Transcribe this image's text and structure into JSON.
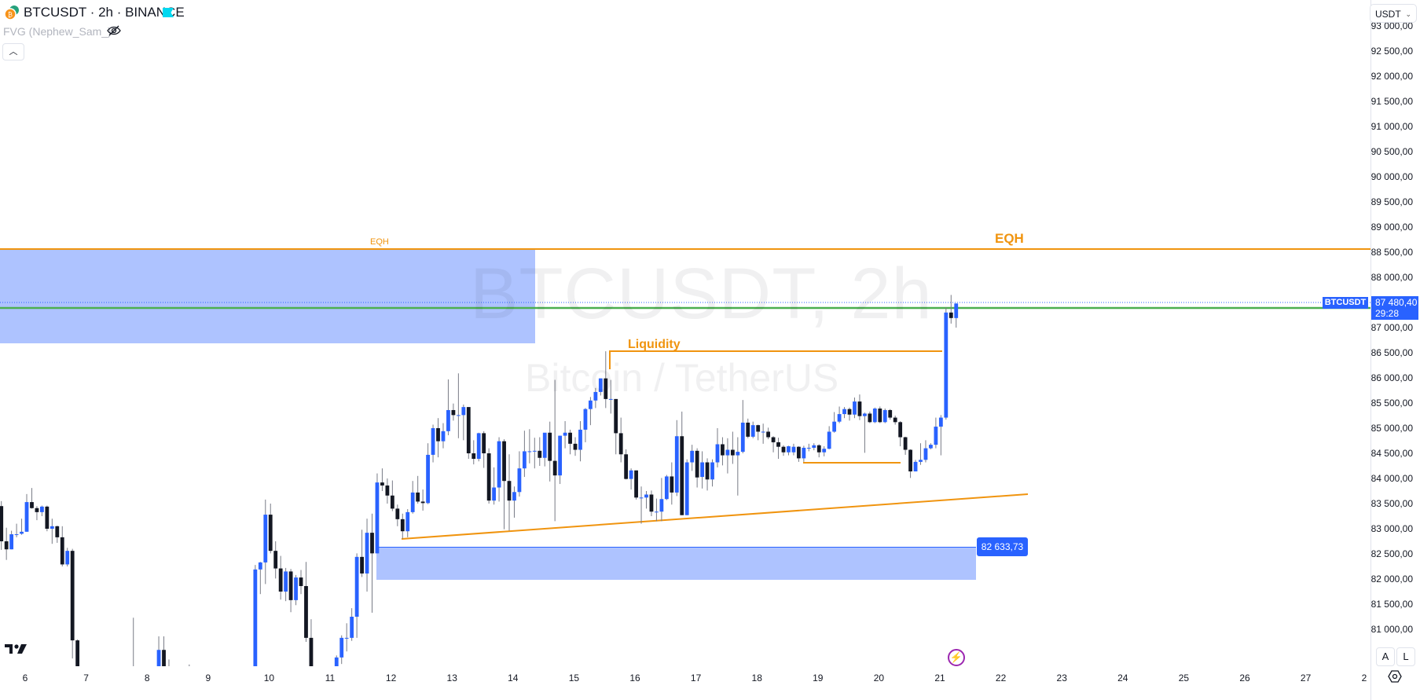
{
  "header": {
    "title": "BTCUSDT · 2h · BINANCE",
    "indicator": "FVG (Nephew_Sam_)",
    "collapse_icon": "chevron-up-icon",
    "visibility_icon": "eye-off-icon"
  },
  "currency_select": {
    "value": "USDT"
  },
  "watermark": {
    "symbol": "BTCUSDT, 2h",
    "description": "Bitcoin / TetherUS"
  },
  "price_axis": {
    "ticks": [
      "93 000,00",
      "92 500,00",
      "92 000,00",
      "91 500,00",
      "91 000,00",
      "90 500,00",
      "90 000,00",
      "89 500,00",
      "89 000,00",
      "88 500,00",
      "88 000,00",
      "87 500,00",
      "87 000,00",
      "86 500,00",
      "86 000,00",
      "85 500,00",
      "85 000,00",
      "84 500,00",
      "84 000,00",
      "83 500,00",
      "83 000,00",
      "82 500,00",
      "82 000,00",
      "81 500,00",
      "81 000,00"
    ],
    "current_symbol": "BTCUSDT",
    "current_price": "87 480,40",
    "countdown": "29:28",
    "auto_label": "A",
    "log_label": "L"
  },
  "time_axis": {
    "ticks": [
      "6",
      "7",
      "8",
      "9",
      "10",
      "11",
      "12",
      "13",
      "14",
      "15",
      "16",
      "17",
      "18",
      "19",
      "20",
      "21",
      "22",
      "23",
      "24",
      "25",
      "26",
      "27",
      "2"
    ]
  },
  "drawings": {
    "eqh_small": "EQH",
    "eqh_large": "EQH",
    "liquidity": "Liquidity",
    "zone_price": "82 633,73"
  },
  "colors": {
    "up": "#2962ff",
    "down": "#131722",
    "wick": "#787b86",
    "drawing": "#f0940f",
    "zone": "#2962ff",
    "current_line": "#4caf50"
  },
  "chart_data": {
    "type": "candlestick",
    "interval": "2h",
    "ylim": [
      80250,
      93300
    ],
    "levels": {
      "eqh": 88560,
      "current_price": 87480.4,
      "green_line": 87390,
      "liquidity": 86530,
      "equal_lows": 84390,
      "upper_zone": [
        86680,
        88560
      ],
      "lower_zone": [
        81980,
        82633.73
      ],
      "trendline": [
        82800,
        83680
      ]
    },
    "candles_ohlc": [
      [
        83450,
        83550,
        82580,
        82750
      ],
      [
        82750,
        83020,
        82380,
        82590
      ],
      [
        82590,
        82960,
        82590,
        82890
      ],
      [
        82890,
        83100,
        82830,
        82890
      ],
      [
        82900,
        83200,
        82880,
        82940
      ],
      [
        82940,
        83690,
        82940,
        83530
      ],
      [
        83530,
        83810,
        83400,
        83410
      ],
      [
        83410,
        83450,
        83170,
        83330
      ],
      [
        83330,
        83460,
        83250,
        83440
      ],
      [
        83440,
        83460,
        82950,
        83000
      ],
      [
        83000,
        83200,
        82700,
        83050
      ],
      [
        83050,
        83060,
        82720,
        82830
      ],
      [
        82830,
        83050,
        82250,
        82290
      ],
      [
        82290,
        82620,
        82250,
        82560
      ],
      [
        82560,
        82600,
        80420,
        80780
      ],
      [
        80780,
        80800,
        79600,
        79700
      ],
      [
        79700,
        79900,
        79000,
        79200
      ],
      [
        79200,
        79500,
        78800,
        79000
      ],
      [
        79000,
        79400,
        78600,
        79300
      ],
      [
        79300,
        79800,
        79100,
        79600
      ],
      [
        79600,
        79900,
        79200,
        79400
      ],
      [
        79400,
        79700,
        78900,
        79100
      ],
      [
        79100,
        79500,
        78800,
        79300
      ],
      [
        79300,
        79800,
        79100,
        79700
      ],
      [
        79700,
        80000,
        79400,
        79600
      ],
      [
        79600,
        79800,
        79200,
        79500
      ],
      [
        79500,
        81230,
        79300,
        79900
      ],
      [
        79900,
        80100,
        79500,
        79700
      ],
      [
        79700,
        79900,
        79300,
        79500
      ],
      [
        79500,
        80000,
        79400,
        79900
      ],
      [
        79900,
        80100,
        79600,
        79800
      ],
      [
        79800,
        80860,
        79700,
        80590
      ],
      [
        80590,
        80860,
        79800,
        79900
      ],
      [
        79900,
        80400,
        79600,
        79800
      ],
      [
        79800,
        80000,
        79400,
        79600
      ],
      [
        79600,
        79900,
        79300,
        79700
      ],
      [
        79700,
        79950,
        79400,
        79500
      ],
      [
        79500,
        80300,
        79300,
        79600
      ],
      [
        79600,
        79900,
        79200,
        79400
      ],
      [
        79400,
        79700,
        79000,
        79300
      ],
      [
        79300,
        79600,
        78900,
        79100
      ],
      [
        79100,
        79500,
        78800,
        79400
      ],
      [
        79400,
        79800,
        79200,
        79600
      ],
      [
        79600,
        79900,
        79300,
        79500
      ],
      [
        79500,
        79800,
        79100,
        79300
      ],
      [
        79300,
        79700,
        79000,
        79600
      ],
      [
        79600,
        80000,
        79400,
        79800
      ],
      [
        79800,
        80100,
        79500,
        79700
      ],
      [
        79700,
        80000,
        79400,
        79900
      ],
      [
        79900,
        80200,
        79600,
        80000
      ],
      [
        80000,
        82280,
        79900,
        82190
      ],
      [
        82190,
        82340,
        81700,
        82330
      ],
      [
        82330,
        83580,
        81900,
        83280
      ],
      [
        83280,
        83500,
        82510,
        82560
      ],
      [
        82560,
        82750,
        82010,
        82210
      ],
      [
        82210,
        82460,
        81590,
        81750
      ],
      [
        81750,
        82220,
        81560,
        82150
      ],
      [
        82150,
        82200,
        81340,
        81580
      ],
      [
        81580,
        82080,
        81480,
        82030
      ],
      [
        82030,
        82180,
        81700,
        81860
      ],
      [
        81860,
        82340,
        80750,
        80830
      ],
      [
        80830,
        81200,
        79700,
        79800
      ],
      [
        79800,
        80100,
        79400,
        79600
      ],
      [
        79600,
        79900,
        79200,
        79500
      ],
      [
        79500,
        79800,
        79100,
        79400
      ],
      [
        79400,
        80100,
        79300,
        80000
      ],
      [
        80000,
        80480,
        79800,
        80440
      ],
      [
        80440,
        80880,
        80310,
        80830
      ],
      [
        80830,
        81120,
        80560,
        80830
      ],
      [
        80830,
        81420,
        80770,
        81250
      ],
      [
        81250,
        82510,
        80830,
        82440
      ],
      [
        82440,
        82980,
        82040,
        82110
      ],
      [
        82110,
        83200,
        81750,
        82920
      ],
      [
        82920,
        83300,
        81330,
        82510
      ],
      [
        82510,
        84100,
        82510,
        83920
      ],
      [
        83920,
        84200,
        83750,
        83860
      ],
      [
        83860,
        84000,
        83500,
        83660
      ],
      [
        83660,
        83960,
        83350,
        83400
      ],
      [
        83400,
        83480,
        83050,
        83190
      ],
      [
        83190,
        83300,
        82800,
        82950
      ],
      [
        82950,
        83390,
        82830,
        83330
      ],
      [
        83330,
        83950,
        83300,
        83720
      ],
      [
        83720,
        84050,
        83500,
        83540
      ],
      [
        83540,
        83780,
        83360,
        83510
      ],
      [
        83510,
        84700,
        83490,
        84470
      ],
      [
        84470,
        85070,
        84320,
        85000
      ],
      [
        85000,
        85200,
        84420,
        84740
      ],
      [
        84740,
        85100,
        84600,
        84940
      ],
      [
        84940,
        85970,
        84860,
        85360
      ],
      [
        85360,
        85490,
        85150,
        85260
      ],
      [
        85260,
        86090,
        84800,
        85260
      ],
      [
        85260,
        85470,
        84760,
        85420
      ],
      [
        85420,
        85420,
        84390,
        84500
      ],
      [
        84500,
        84760,
        84280,
        84390
      ],
      [
        84390,
        84910,
        84340,
        84900
      ],
      [
        84900,
        84940,
        84210,
        84500
      ],
      [
        84500,
        84600,
        83500,
        83560
      ],
      [
        83560,
        84220,
        83480,
        83820
      ],
      [
        83820,
        84820,
        83540,
        84740
      ],
      [
        84740,
        84780,
        82990,
        83950
      ],
      [
        83950,
        84480,
        82960,
        83560
      ],
      [
        83560,
        83840,
        83220,
        83730
      ],
      [
        83730,
        84540,
        83640,
        84200
      ],
      [
        84200,
        84950,
        84030,
        84540
      ],
      [
        84540,
        84980,
        84300,
        84540
      ],
      [
        84540,
        84810,
        84200,
        84550
      ],
      [
        84550,
        84820,
        84250,
        84410
      ],
      [
        84410,
        84830,
        84240,
        84910
      ],
      [
        84910,
        85130,
        83940,
        84350
      ],
      [
        84350,
        85960,
        83150,
        84060
      ],
      [
        84060,
        84850,
        83890,
        84850
      ],
      [
        84850,
        85140,
        84600,
        84910
      ],
      [
        84910,
        84970,
        84480,
        84690
      ],
      [
        84690,
        84820,
        84450,
        84570
      ],
      [
        84570,
        85140,
        84340,
        84970
      ],
      [
        84970,
        85400,
        84720,
        85380
      ],
      [
        85380,
        85620,
        85060,
        85550
      ],
      [
        85550,
        85800,
        85400,
        85720
      ],
      [
        85720,
        85990,
        85650,
        85990
      ],
      [
        85990,
        86530,
        85400,
        85580
      ],
      [
        85580,
        85960,
        85290,
        85580
      ],
      [
        85580,
        85580,
        84480,
        84900
      ],
      [
        84900,
        85210,
        84320,
        84480
      ],
      [
        84480,
        84580,
        83980,
        83990
      ],
      [
        83990,
        84200,
        83780,
        84160
      ],
      [
        84160,
        84160,
        83580,
        83620
      ],
      [
        83620,
        83840,
        83100,
        83620
      ],
      [
        83620,
        83750,
        83400,
        83680
      ],
      [
        83680,
        83760,
        83250,
        83340
      ],
      [
        83340,
        83600,
        83150,
        83340
      ],
      [
        83340,
        84010,
        83150,
        83590
      ],
      [
        83590,
        84070,
        83570,
        84040
      ],
      [
        84040,
        84320,
        83480,
        83720
      ],
      [
        83720,
        85160,
        83650,
        84840
      ],
      [
        84840,
        85330,
        83270,
        83270
      ],
      [
        83270,
        84380,
        83270,
        84320
      ],
      [
        84320,
        84670,
        84150,
        84550
      ],
      [
        84550,
        84600,
        83820,
        84020
      ],
      [
        84030,
        84540,
        83800,
        84320
      ],
      [
        84320,
        84400,
        83760,
        83980
      ],
      [
        83980,
        84380,
        83840,
        84320
      ],
      [
        84320,
        85000,
        84220,
        84680
      ],
      [
        84680,
        84820,
        84260,
        84460
      ],
      [
        84460,
        84800,
        84100,
        84570
      ],
      [
        84570,
        84930,
        84290,
        84460
      ],
      [
        84460,
        84820,
        83660,
        84530
      ],
      [
        84530,
        85560,
        84500,
        85110
      ],
      [
        85110,
        85190,
        84800,
        84830
      ],
      [
        84830,
        85130,
        84800,
        85060
      ],
      [
        85060,
        85070,
        84760,
        84930
      ],
      [
        84930,
        85090,
        84690,
        84930
      ],
      [
        84930,
        85010,
        84780,
        84820
      ],
      [
        84820,
        84840,
        84520,
        84720
      ],
      [
        84720,
        84810,
        84390,
        84630
      ],
      [
        84630,
        84660,
        84450,
        84520
      ],
      [
        84520,
        84650,
        84460,
        84640
      ],
      [
        84520,
        84690,
        84460,
        84630
      ],
      [
        84630,
        84640,
        84330,
        84400
      ],
      [
        84400,
        84650,
        84330,
        84610
      ],
      [
        84610,
        84690,
        84540,
        84610
      ],
      [
        84610,
        84700,
        84560,
        84660
      ],
      [
        84660,
        84680,
        84420,
        84520
      ],
      [
        84520,
        84640,
        84440,
        84590
      ],
      [
        84590,
        85040,
        84580,
        84930
      ],
      [
        84930,
        85320,
        84910,
        85130
      ],
      [
        85130,
        85430,
        85100,
        85280
      ],
      [
        85280,
        85420,
        85200,
        85380
      ],
      [
        85380,
        85410,
        85150,
        85270
      ],
      [
        85270,
        85610,
        85200,
        85530
      ],
      [
        85530,
        85670,
        85160,
        85240
      ],
      [
        85240,
        85310,
        84510,
        85290
      ],
      [
        85290,
        85330,
        85100,
        85120
      ],
      [
        85120,
        85410,
        85100,
        85390
      ],
      [
        85390,
        85430,
        85100,
        85120
      ],
      [
        85120,
        85390,
        85100,
        85360
      ],
      [
        85360,
        85380,
        85170,
        85210
      ],
      [
        85210,
        85250,
        85070,
        85120
      ],
      [
        85120,
        85140,
        84640,
        84820
      ],
      [
        84820,
        84830,
        84470,
        84570
      ],
      [
        84570,
        84580,
        84010,
        84140
      ],
      [
        84140,
        84370,
        84140,
        84330
      ],
      [
        84330,
        84700,
        84270,
        84370
      ],
      [
        84370,
        84760,
        84320,
        84600
      ],
      [
        84600,
        84700,
        84580,
        84670
      ],
      [
        84670,
        85210,
        84600,
        85030
      ],
      [
        85030,
        85260,
        84460,
        85210
      ],
      [
        85210,
        87400,
        85170,
        87300
      ],
      [
        87300,
        87650,
        87080,
        87190
      ],
      [
        87190,
        87480,
        87000,
        87480
      ]
    ]
  }
}
